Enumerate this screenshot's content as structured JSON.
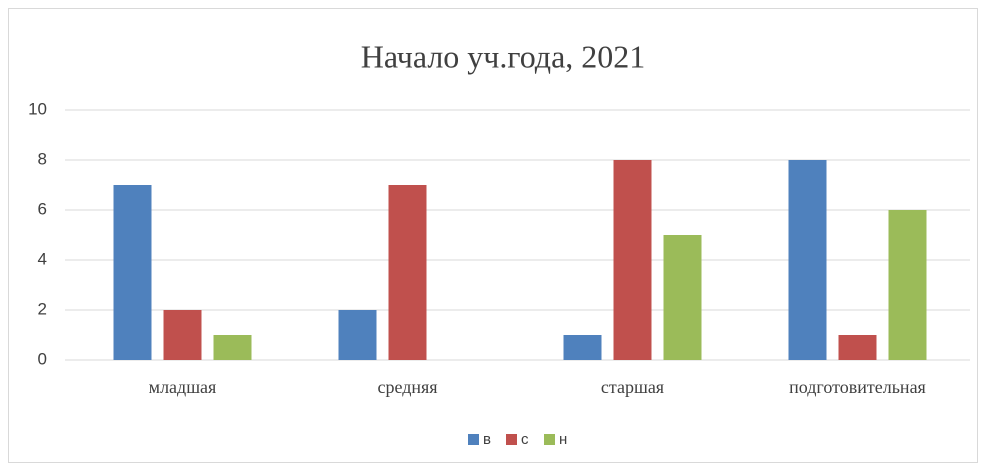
{
  "chart_data": {
    "type": "bar",
    "title": "Начало уч.года, 2021",
    "categories": [
      "младшая",
      "средняя",
      "старшая",
      "подготовительная"
    ],
    "series": [
      {
        "name": "в",
        "color": "#4f81bd",
        "values": [
          7,
          2,
          1,
          8
        ]
      },
      {
        "name": "с",
        "color": "#c0504d",
        "values": [
          2,
          7,
          8,
          1
        ]
      },
      {
        "name": "н",
        "color": "#9bbb59",
        "values": [
          1,
          0,
          5,
          6
        ]
      }
    ],
    "ylim": [
      0,
      10
    ],
    "yticks": [
      0,
      2,
      4,
      6,
      8,
      10
    ],
    "grid": true,
    "legend": "bottom"
  }
}
